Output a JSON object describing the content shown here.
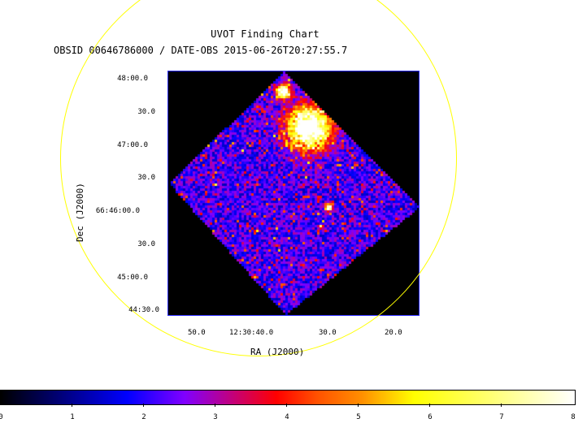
{
  "chart": {
    "title": "UVOT Finding Chart",
    "subtitle": "OBSID 00646786000 / DATE-OBS 2015-06-26T20:27:55.7",
    "ylabel": "Dec (J2000)",
    "xlabel": "RA (J2000)",
    "dec_ticks": [
      "48:00.0",
      "30.0",
      "47:00.0",
      "30.0",
      "66:46:00.0",
      "30.0",
      "45:00.0",
      "44:30.0"
    ],
    "ra_ticks": [
      "50.0",
      "12:30:40.0",
      "30.0",
      "20.0"
    ],
    "colorbar_ticks": [
      "0",
      "1",
      "2",
      "3",
      "4",
      "5",
      "6",
      "7",
      "8"
    ],
    "colors": {
      "circle": "#ffff00",
      "frame": "#2a2aff",
      "background": "#000000"
    }
  }
}
